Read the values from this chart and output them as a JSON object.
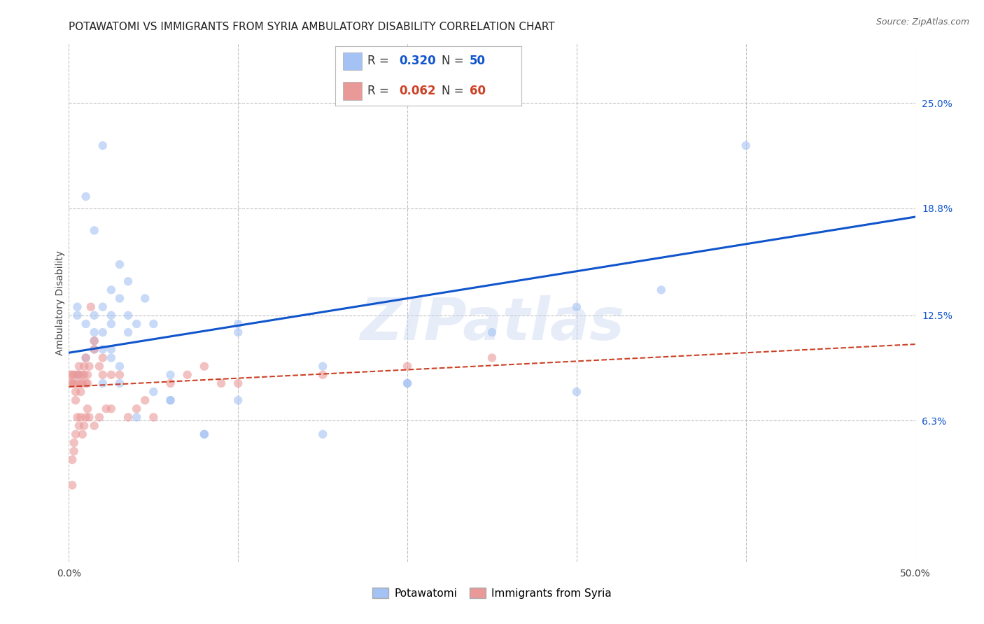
{
  "title": "POTAWATOMI VS IMMIGRANTS FROM SYRIA AMBULATORY DISABILITY CORRELATION CHART",
  "source": "Source: ZipAtlas.com",
  "ylabel": "Ambulatory Disability",
  "ytick_labels": [
    "6.3%",
    "12.5%",
    "18.8%",
    "25.0%"
  ],
  "ytick_values": [
    0.063,
    0.125,
    0.188,
    0.25
  ],
  "xlim": [
    0.0,
    0.5
  ],
  "ylim": [
    -0.02,
    0.285
  ],
  "blue_R": "0.320",
  "blue_N": "50",
  "pink_R": "0.062",
  "pink_N": "60",
  "blue_color": "#a4c2f4",
  "pink_color": "#ea9999",
  "blue_line_color": "#1155cc",
  "pink_line_color": "#cc4125",
  "background_color": "#ffffff",
  "grid_color": "#c0c0c0",
  "blue_scatter_x": [
    0.02,
    0.01,
    0.015,
    0.005,
    0.005,
    0.01,
    0.015,
    0.02,
    0.025,
    0.03,
    0.035,
    0.02,
    0.015,
    0.025,
    0.03,
    0.035,
    0.05,
    0.06,
    0.025,
    0.045,
    0.015,
    0.02,
    0.025,
    0.03,
    0.035,
    0.04,
    0.1,
    0.15,
    0.3,
    0.4,
    0.25,
    0.2,
    0.1,
    0.08,
    0.06,
    0.3,
    0.2,
    0.15,
    0.1,
    0.08,
    0.06,
    0.05,
    0.025,
    0.015,
    0.01,
    0.005,
    0.02,
    0.03,
    0.35,
    0.04
  ],
  "blue_scatter_y": [
    0.225,
    0.195,
    0.175,
    0.13,
    0.125,
    0.12,
    0.115,
    0.115,
    0.12,
    0.155,
    0.145,
    0.13,
    0.125,
    0.14,
    0.135,
    0.125,
    0.12,
    0.09,
    0.105,
    0.135,
    0.11,
    0.105,
    0.1,
    0.095,
    0.115,
    0.12,
    0.12,
    0.095,
    0.13,
    0.225,
    0.115,
    0.085,
    0.075,
    0.055,
    0.075,
    0.08,
    0.085,
    0.055,
    0.115,
    0.055,
    0.075,
    0.08,
    0.125,
    0.105,
    0.1,
    0.09,
    0.085,
    0.085,
    0.14,
    0.065
  ],
  "pink_scatter_x": [
    0.001,
    0.001,
    0.002,
    0.002,
    0.003,
    0.003,
    0.004,
    0.004,
    0.005,
    0.005,
    0.006,
    0.006,
    0.007,
    0.007,
    0.008,
    0.008,
    0.009,
    0.009,
    0.01,
    0.01,
    0.011,
    0.011,
    0.012,
    0.013,
    0.015,
    0.015,
    0.018,
    0.02,
    0.02,
    0.025,
    0.025,
    0.03,
    0.035,
    0.04,
    0.045,
    0.05,
    0.06,
    0.07,
    0.08,
    0.09,
    0.1,
    0.15,
    0.2,
    0.25,
    0.002,
    0.003,
    0.004,
    0.005,
    0.006,
    0.007,
    0.008,
    0.009,
    0.01,
    0.011,
    0.012,
    0.015,
    0.018,
    0.022,
    0.003,
    0.002
  ],
  "pink_scatter_y": [
    0.09,
    0.085,
    0.09,
    0.085,
    0.09,
    0.085,
    0.08,
    0.075,
    0.085,
    0.09,
    0.095,
    0.09,
    0.085,
    0.08,
    0.09,
    0.085,
    0.095,
    0.09,
    0.085,
    0.1,
    0.09,
    0.085,
    0.095,
    0.13,
    0.11,
    0.105,
    0.095,
    0.1,
    0.09,
    0.09,
    0.07,
    0.09,
    0.065,
    0.07,
    0.075,
    0.065,
    0.085,
    0.09,
    0.095,
    0.085,
    0.085,
    0.09,
    0.095,
    0.1,
    0.04,
    0.05,
    0.055,
    0.065,
    0.06,
    0.065,
    0.055,
    0.06,
    0.065,
    0.07,
    0.065,
    0.06,
    0.065,
    0.07,
    0.045,
    0.025
  ],
  "blue_line_x": [
    0.0,
    0.5
  ],
  "blue_line_y": [
    0.103,
    0.183
  ],
  "pink_line_x": [
    0.0,
    0.5
  ],
  "pink_line_y": [
    0.083,
    0.108
  ],
  "marker_size": 80,
  "marker_alpha": 0.6,
  "title_fontsize": 11,
  "label_fontsize": 10,
  "tick_fontsize": 10
}
